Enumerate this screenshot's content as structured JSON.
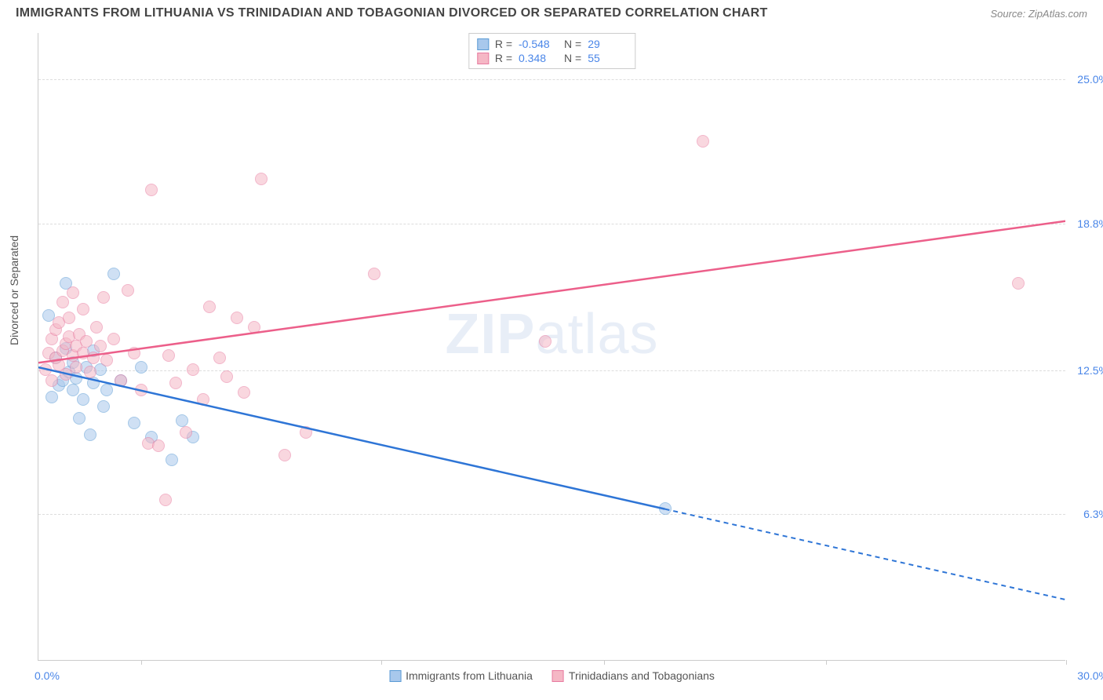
{
  "header": {
    "title": "IMMIGRANTS FROM LITHUANIA VS TRINIDADIAN AND TOBAGONIAN DIVORCED OR SEPARATED CORRELATION CHART",
    "source": "Source: ZipAtlas.com"
  },
  "chart": {
    "type": "scatter",
    "ylabel": "Divorced or Separated",
    "watermark_a": "ZIP",
    "watermark_b": "atlas",
    "xlim": [
      0,
      30
    ],
    "ylim": [
      0,
      27
    ],
    "x_axis_min_label": "0.0%",
    "x_axis_max_label": "30.0%",
    "yticks": [
      {
        "v": 6.3,
        "label": "6.3%"
      },
      {
        "v": 12.5,
        "label": "12.5%"
      },
      {
        "v": 18.8,
        "label": "18.8%"
      },
      {
        "v": 25.0,
        "label": "25.0%"
      }
    ],
    "xticks": [
      3.0,
      10.0,
      16.5,
      23.0,
      30.0
    ],
    "grid_color": "#dddddd",
    "background_color": "#ffffff",
    "series": [
      {
        "name": "Immigrants from Lithuania",
        "r_value": "-0.548",
        "n_value": "29",
        "fill": "#a8c8ec",
        "fill_opacity": 0.55,
        "stroke": "#5b9bd5",
        "line_color": "#2e75d6",
        "marker_radius": 8,
        "regression": {
          "x1": 0.0,
          "y1": 12.6,
          "x2": 18.3,
          "y2": 6.5,
          "x3": 30.0,
          "y3": 2.6
        },
        "points": [
          [
            0.3,
            14.8
          ],
          [
            0.4,
            11.3
          ],
          [
            0.5,
            13.0
          ],
          [
            0.6,
            11.8
          ],
          [
            0.7,
            12.0
          ],
          [
            0.8,
            13.4
          ],
          [
            0.8,
            16.2
          ],
          [
            0.9,
            12.4
          ],
          [
            1.0,
            11.6
          ],
          [
            1.0,
            12.8
          ],
          [
            1.1,
            12.1
          ],
          [
            1.2,
            10.4
          ],
          [
            1.3,
            11.2
          ],
          [
            1.4,
            12.6
          ],
          [
            1.5,
            9.7
          ],
          [
            1.6,
            13.3
          ],
          [
            1.6,
            11.9
          ],
          [
            1.8,
            12.5
          ],
          [
            1.9,
            10.9
          ],
          [
            2.0,
            11.6
          ],
          [
            2.2,
            16.6
          ],
          [
            2.4,
            12.0
          ],
          [
            2.8,
            10.2
          ],
          [
            3.0,
            12.6
          ],
          [
            3.3,
            9.6
          ],
          [
            3.9,
            8.6
          ],
          [
            4.2,
            10.3
          ],
          [
            4.5,
            9.6
          ],
          [
            18.3,
            6.5
          ]
        ]
      },
      {
        "name": "Trinidadians and Tobagonians",
        "r_value": "0.348",
        "n_value": "55",
        "fill": "#f5b7c5",
        "fill_opacity": 0.55,
        "stroke": "#e87ba0",
        "line_color": "#ec5f8a",
        "marker_radius": 8,
        "regression": {
          "x1": 0.0,
          "y1": 12.8,
          "x2": 30.0,
          "y2": 18.9
        },
        "points": [
          [
            0.2,
            12.5
          ],
          [
            0.3,
            13.2
          ],
          [
            0.4,
            13.8
          ],
          [
            0.4,
            12.0
          ],
          [
            0.5,
            14.2
          ],
          [
            0.5,
            13.0
          ],
          [
            0.6,
            14.5
          ],
          [
            0.6,
            12.7
          ],
          [
            0.7,
            13.3
          ],
          [
            0.7,
            15.4
          ],
          [
            0.8,
            13.6
          ],
          [
            0.8,
            12.3
          ],
          [
            0.9,
            13.9
          ],
          [
            0.9,
            14.7
          ],
          [
            1.0,
            13.1
          ],
          [
            1.0,
            15.8
          ],
          [
            1.1,
            13.5
          ],
          [
            1.1,
            12.6
          ],
          [
            1.2,
            14.0
          ],
          [
            1.3,
            13.2
          ],
          [
            1.3,
            15.1
          ],
          [
            1.4,
            13.7
          ],
          [
            1.5,
            12.4
          ],
          [
            1.6,
            13.0
          ],
          [
            1.7,
            14.3
          ],
          [
            1.8,
            13.5
          ],
          [
            1.9,
            15.6
          ],
          [
            2.0,
            12.9
          ],
          [
            2.2,
            13.8
          ],
          [
            2.4,
            12.0
          ],
          [
            2.6,
            15.9
          ],
          [
            2.8,
            13.2
          ],
          [
            3.0,
            11.6
          ],
          [
            3.2,
            9.3
          ],
          [
            3.3,
            20.2
          ],
          [
            3.5,
            9.2
          ],
          [
            3.7,
            6.9
          ],
          [
            3.8,
            13.1
          ],
          [
            4.0,
            11.9
          ],
          [
            4.3,
            9.8
          ],
          [
            4.5,
            12.5
          ],
          [
            4.8,
            11.2
          ],
          [
            5.0,
            15.2
          ],
          [
            5.3,
            13.0
          ],
          [
            5.5,
            12.2
          ],
          [
            5.8,
            14.7
          ],
          [
            6.0,
            11.5
          ],
          [
            6.3,
            14.3
          ],
          [
            6.5,
            20.7
          ],
          [
            7.2,
            8.8
          ],
          [
            7.8,
            9.8
          ],
          [
            9.8,
            16.6
          ],
          [
            14.8,
            13.7
          ],
          [
            19.4,
            22.3
          ],
          [
            28.6,
            16.2
          ]
        ]
      }
    ]
  }
}
